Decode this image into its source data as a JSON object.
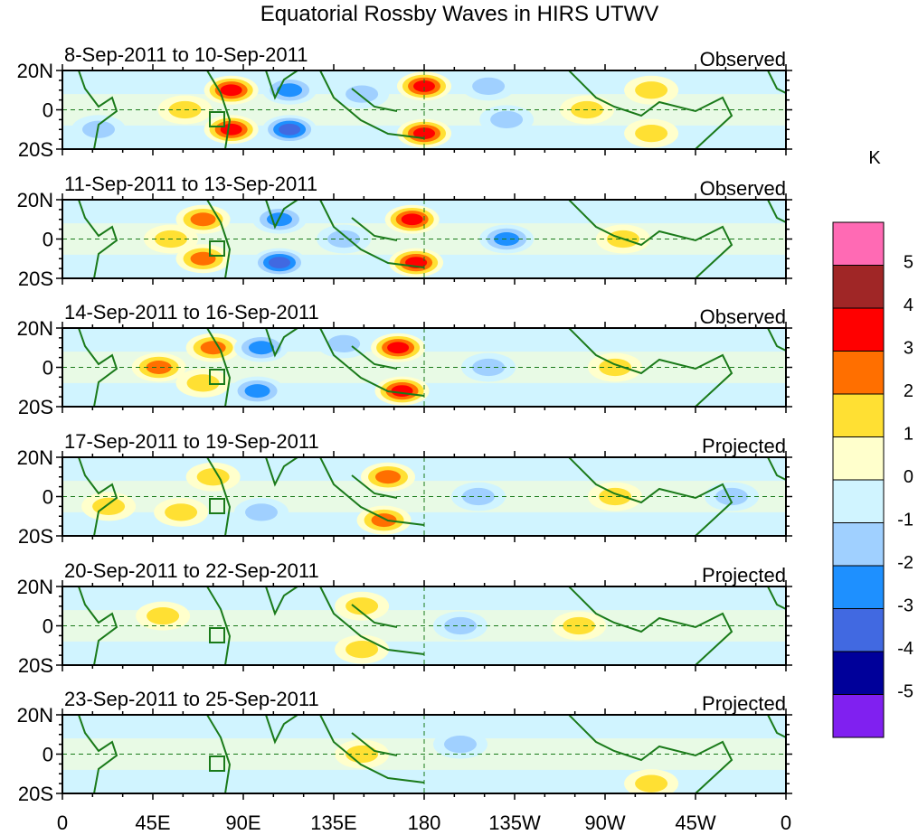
{
  "title": "Equatorial Rossby Waves in HIRS UTWV",
  "units": "K",
  "lat_labels": [
    "20N",
    "0",
    "20S"
  ],
  "lon_labels": [
    "0",
    "45E",
    "90E",
    "135E",
    "180",
    "135W",
    "90W",
    "45W",
    "0"
  ],
  "colorbar": {
    "labels": [
      "5",
      "4",
      "3",
      "2",
      "1",
      "0",
      "-1",
      "-2",
      "-3",
      "-4",
      "-5"
    ],
    "colors": [
      "#ff6ab4",
      "#a02626",
      "#ff0000",
      "#ff6f00",
      "#ffe033",
      "#ffffcc",
      "#d0f4ff",
      "#a0d0ff",
      "#1e90ff",
      "#4169e1",
      "#00009a",
      "#8020f0"
    ]
  },
  "panels": [
    {
      "dates": "8-Sep-2011 to 10-Sep-2011",
      "status": "Observed",
      "features": [
        [
          84,
          10,
          3.5
        ],
        [
          84,
          -10,
          3.5
        ],
        [
          113,
          10,
          -3
        ],
        [
          113,
          -10,
          -3.5
        ],
        [
          180,
          12,
          3.5
        ],
        [
          180,
          -12,
          3.5
        ],
        [
          61,
          0,
          1.5
        ],
        [
          18,
          -10,
          -2
        ],
        [
          261,
          0,
          1.5
        ],
        [
          293,
          10,
          1.5
        ],
        [
          293,
          -12,
          2
        ],
        [
          149,
          8,
          -1.5
        ],
        [
          221,
          -5,
          -1.5
        ],
        [
          212,
          12,
          -1.5
        ]
      ]
    },
    {
      "dates": "11-Sep-2011 to 13-Sep-2011",
      "status": "Observed",
      "features": [
        [
          70,
          10,
          2.5
        ],
        [
          70,
          -10,
          2.5
        ],
        [
          108,
          10,
          -2.5
        ],
        [
          108,
          -12,
          -3.5
        ],
        [
          174,
          10,
          3.5
        ],
        [
          176,
          -12,
          3.5
        ],
        [
          221,
          0,
          -2.5
        ],
        [
          54,
          0,
          2
        ],
        [
          140,
          0,
          -1.5
        ],
        [
          279,
          0,
          1.5
        ]
      ]
    },
    {
      "dates": "14-Sep-2011 to 16-Sep-2011",
      "status": "Observed",
      "features": [
        [
          75,
          10,
          2.5
        ],
        [
          70,
          -8,
          2
        ],
        [
          99,
          10,
          -2.5
        ],
        [
          97,
          -12,
          -3
        ],
        [
          167,
          10,
          3.5
        ],
        [
          169,
          -12,
          3.5
        ],
        [
          48,
          0,
          2.5
        ],
        [
          212,
          0,
          -2
        ],
        [
          140,
          12,
          -1.5
        ],
        [
          275,
          0,
          1.5
        ]
      ]
    },
    {
      "dates": "17-Sep-2011 to 19-Sep-2011",
      "status": "Projected",
      "features": [
        [
          162,
          10,
          2.5
        ],
        [
          160,
          -12,
          2.5
        ],
        [
          75,
          10,
          1.5
        ],
        [
          59,
          -8,
          1.5
        ],
        [
          99,
          -8,
          -1.5
        ],
        [
          207,
          0,
          -1.5
        ],
        [
          275,
          0,
          1.5
        ],
        [
          333,
          0,
          -1.5
        ],
        [
          23,
          -5,
          1.5
        ]
      ]
    },
    {
      "dates": "20-Sep-2011 to 22-Sep-2011",
      "status": "Projected",
      "features": [
        [
          149,
          10,
          1.5
        ],
        [
          149,
          -12,
          1.5
        ],
        [
          198,
          0,
          -1.5
        ],
        [
          257,
          0,
          1.5
        ],
        [
          50,
          5,
          1.2
        ]
      ]
    },
    {
      "dates": "23-Sep-2011 to 25-Sep-2011",
      "status": "Projected",
      "features": [
        [
          149,
          0,
          1.2
        ],
        [
          198,
          5,
          -1.2
        ],
        [
          293,
          -15,
          1.2
        ]
      ]
    }
  ]
}
